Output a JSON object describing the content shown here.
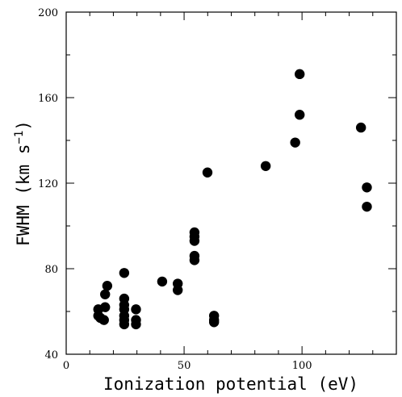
{
  "chart_data": {
    "type": "scatter",
    "title": "",
    "xlabel": "Ionization potential (eV)",
    "ylabel_main": "FWHM (km s",
    "ylabel_sup": "−1",
    "ylabel_close": ")",
    "xlim": [
      0,
      140
    ],
    "ylim": [
      40,
      200
    ],
    "x_major_ticks": [
      0,
      50,
      100
    ],
    "x_minor_step": 10,
    "y_major_ticks": [
      40,
      80,
      120,
      160,
      200
    ],
    "y_minor_step": 20,
    "x_tick_labels": [
      "0",
      "50",
      "100"
    ],
    "y_tick_labels": [
      "40",
      "80",
      "120",
      "160",
      "200"
    ],
    "grid": false,
    "legend": "none",
    "marker_color": "#000000",
    "points": [
      {
        "x": 13.6,
        "y": 61
      },
      {
        "x": 13.6,
        "y": 58
      },
      {
        "x": 14.5,
        "y": 57
      },
      {
        "x": 16.0,
        "y": 56
      },
      {
        "x": 16.5,
        "y": 62
      },
      {
        "x": 16.5,
        "y": 68
      },
      {
        "x": 17.4,
        "y": 72
      },
      {
        "x": 24.6,
        "y": 78
      },
      {
        "x": 24.6,
        "y": 66
      },
      {
        "x": 24.6,
        "y": 63
      },
      {
        "x": 24.6,
        "y": 61
      },
      {
        "x": 24.6,
        "y": 58
      },
      {
        "x": 24.6,
        "y": 56
      },
      {
        "x": 24.6,
        "y": 54
      },
      {
        "x": 29.6,
        "y": 61
      },
      {
        "x": 29.6,
        "y": 56
      },
      {
        "x": 29.6,
        "y": 54
      },
      {
        "x": 40.7,
        "y": 74
      },
      {
        "x": 47.3,
        "y": 73
      },
      {
        "x": 47.3,
        "y": 70
      },
      {
        "x": 54.4,
        "y": 97
      },
      {
        "x": 54.4,
        "y": 95
      },
      {
        "x": 54.4,
        "y": 93
      },
      {
        "x": 54.4,
        "y": 86
      },
      {
        "x": 54.4,
        "y": 84
      },
      {
        "x": 59.9,
        "y": 125
      },
      {
        "x": 62.7,
        "y": 58
      },
      {
        "x": 62.7,
        "y": 56
      },
      {
        "x": 62.7,
        "y": 55
      },
      {
        "x": 84.6,
        "y": 128
      },
      {
        "x": 97.1,
        "y": 139
      },
      {
        "x": 99.0,
        "y": 171
      },
      {
        "x": 99.0,
        "y": 152
      },
      {
        "x": 125.0,
        "y": 146
      },
      {
        "x": 127.5,
        "y": 118
      },
      {
        "x": 127.5,
        "y": 109
      }
    ]
  }
}
